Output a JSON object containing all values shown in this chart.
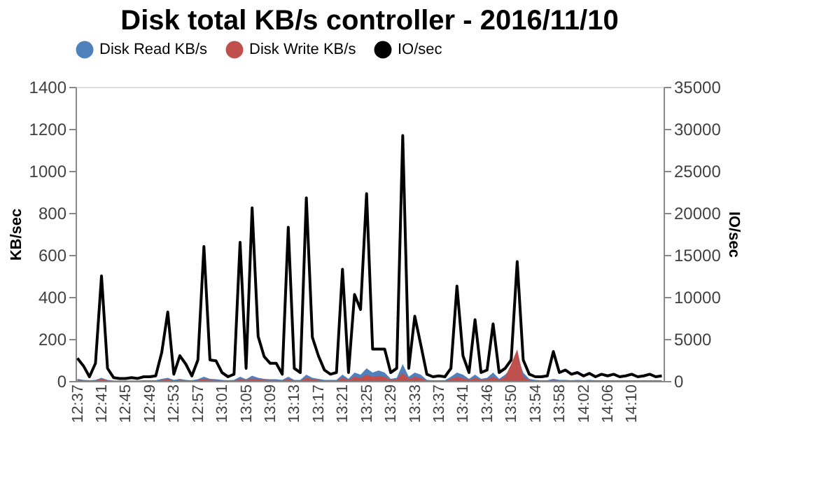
{
  "chart_data": {
    "type": "area",
    "title": "Disk total KB/s controller - 2016/11/10",
    "ylabel": "KB/sec",
    "y2label": "IO/sec",
    "categories": [
      "12:37",
      null,
      null,
      null,
      "12:41",
      null,
      null,
      null,
      "12:45",
      null,
      null,
      null,
      "12:49",
      null,
      null,
      null,
      "12:53",
      null,
      null,
      null,
      "12:57",
      null,
      null,
      null,
      "13:01",
      null,
      null,
      null,
      "13:05",
      null,
      null,
      null,
      "13:09",
      null,
      null,
      null,
      "13:13",
      null,
      null,
      null,
      "13:17",
      null,
      null,
      null,
      "13:21",
      null,
      null,
      null,
      "13:25",
      null,
      null,
      null,
      "13:29",
      null,
      null,
      null,
      "13:33",
      null,
      null,
      null,
      "13:37",
      null,
      null,
      null,
      "13:41",
      null,
      null,
      null,
      "13:46",
      null,
      null,
      null,
      "13:50",
      null,
      null,
      null,
      "13:54",
      null,
      null,
      null,
      "13:58",
      null,
      null,
      null,
      "14:02",
      null,
      null,
      null,
      "14:06",
      null,
      null,
      null,
      "14:10",
      null,
      null,
      null,
      null,
      null
    ],
    "series": [
      {
        "name": "Disk Read KB/s",
        "color": "#4f81bd",
        "values": [
          10,
          5,
          3,
          5,
          15,
          5,
          2,
          2,
          2,
          2,
          2,
          3,
          3,
          3,
          10,
          15,
          5,
          10,
          5,
          3,
          8,
          20,
          10,
          8,
          5,
          3,
          5,
          20,
          8,
          25,
          15,
          10,
          8,
          8,
          5,
          20,
          5,
          5,
          30,
          15,
          10,
          5,
          5,
          5,
          30,
          10,
          40,
          30,
          60,
          40,
          50,
          40,
          10,
          15,
          80,
          20,
          40,
          30,
          5,
          3,
          3,
          3,
          20,
          40,
          30,
          10,
          30,
          10,
          15,
          40,
          10,
          30,
          60,
          120,
          40,
          10,
          5,
          3,
          3,
          10,
          5,
          5,
          3,
          5,
          3,
          5,
          3,
          3,
          3,
          3,
          3,
          3,
          3,
          3,
          3,
          3,
          3,
          3
        ]
      },
      {
        "name": "Disk Write KB/s",
        "color": "#c0504d",
        "values": [
          5,
          3,
          2,
          3,
          10,
          3,
          1,
          1,
          1,
          1,
          1,
          1,
          1,
          1,
          5,
          8,
          2,
          5,
          3,
          1,
          4,
          10,
          5,
          4,
          2,
          1,
          2,
          10,
          4,
          12,
          8,
          5,
          4,
          4,
          2,
          10,
          2,
          2,
          15,
          8,
          5,
          2,
          2,
          2,
          15,
          5,
          20,
          15,
          30,
          20,
          25,
          20,
          5,
          8,
          40,
          10,
          20,
          15,
          2,
          1,
          1,
          1,
          10,
          20,
          15,
          5,
          15,
          5,
          8,
          20,
          5,
          20,
          80,
          150,
          20,
          5,
          2,
          1,
          1,
          5,
          2,
          2,
          1,
          2,
          1,
          2,
          1,
          1,
          1,
          1,
          1,
          1,
          1,
          1,
          1,
          1,
          1,
          1
        ]
      },
      {
        "name": "IO/sec",
        "type": "line",
        "color": "#000000",
        "axis": "y2",
        "values": [
          2700,
          1800,
          500,
          2100,
          12500,
          1500,
          400,
          300,
          300,
          400,
          300,
          500,
          500,
          600,
          3400,
          8200,
          800,
          3000,
          2000,
          600,
          2500,
          16000,
          2500,
          2400,
          1000,
          500,
          800,
          16500,
          1500,
          20600,
          5300,
          2900,
          2100,
          2100,
          800,
          18300,
          1500,
          1000,
          21800,
          5200,
          3000,
          1300,
          800,
          1000,
          13300,
          1000,
          10300,
          8500,
          22300,
          3800,
          3800,
          3800,
          1000,
          1500,
          29200,
          1500,
          7700,
          4300,
          800,
          500,
          600,
          500,
          1500,
          11300,
          3000,
          1000,
          7300,
          1000,
          1300,
          6800,
          1000,
          1500,
          2500,
          14200,
          2500,
          800,
          500,
          500,
          600,
          3500,
          1000,
          1300,
          800,
          1000,
          600,
          900,
          500,
          800,
          600,
          800,
          500,
          600,
          800,
          500,
          600,
          800,
          500,
          600
        ]
      }
    ],
    "ylim": [
      0,
      1400
    ],
    "yticks": [
      0,
      200,
      400,
      600,
      800,
      1000,
      1200,
      1400
    ],
    "y2lim": [
      0,
      35000
    ],
    "y2ticks": [
      0,
      5000,
      10000,
      15000,
      20000,
      25000,
      30000,
      35000
    ],
    "legend": "top",
    "grid": false
  }
}
